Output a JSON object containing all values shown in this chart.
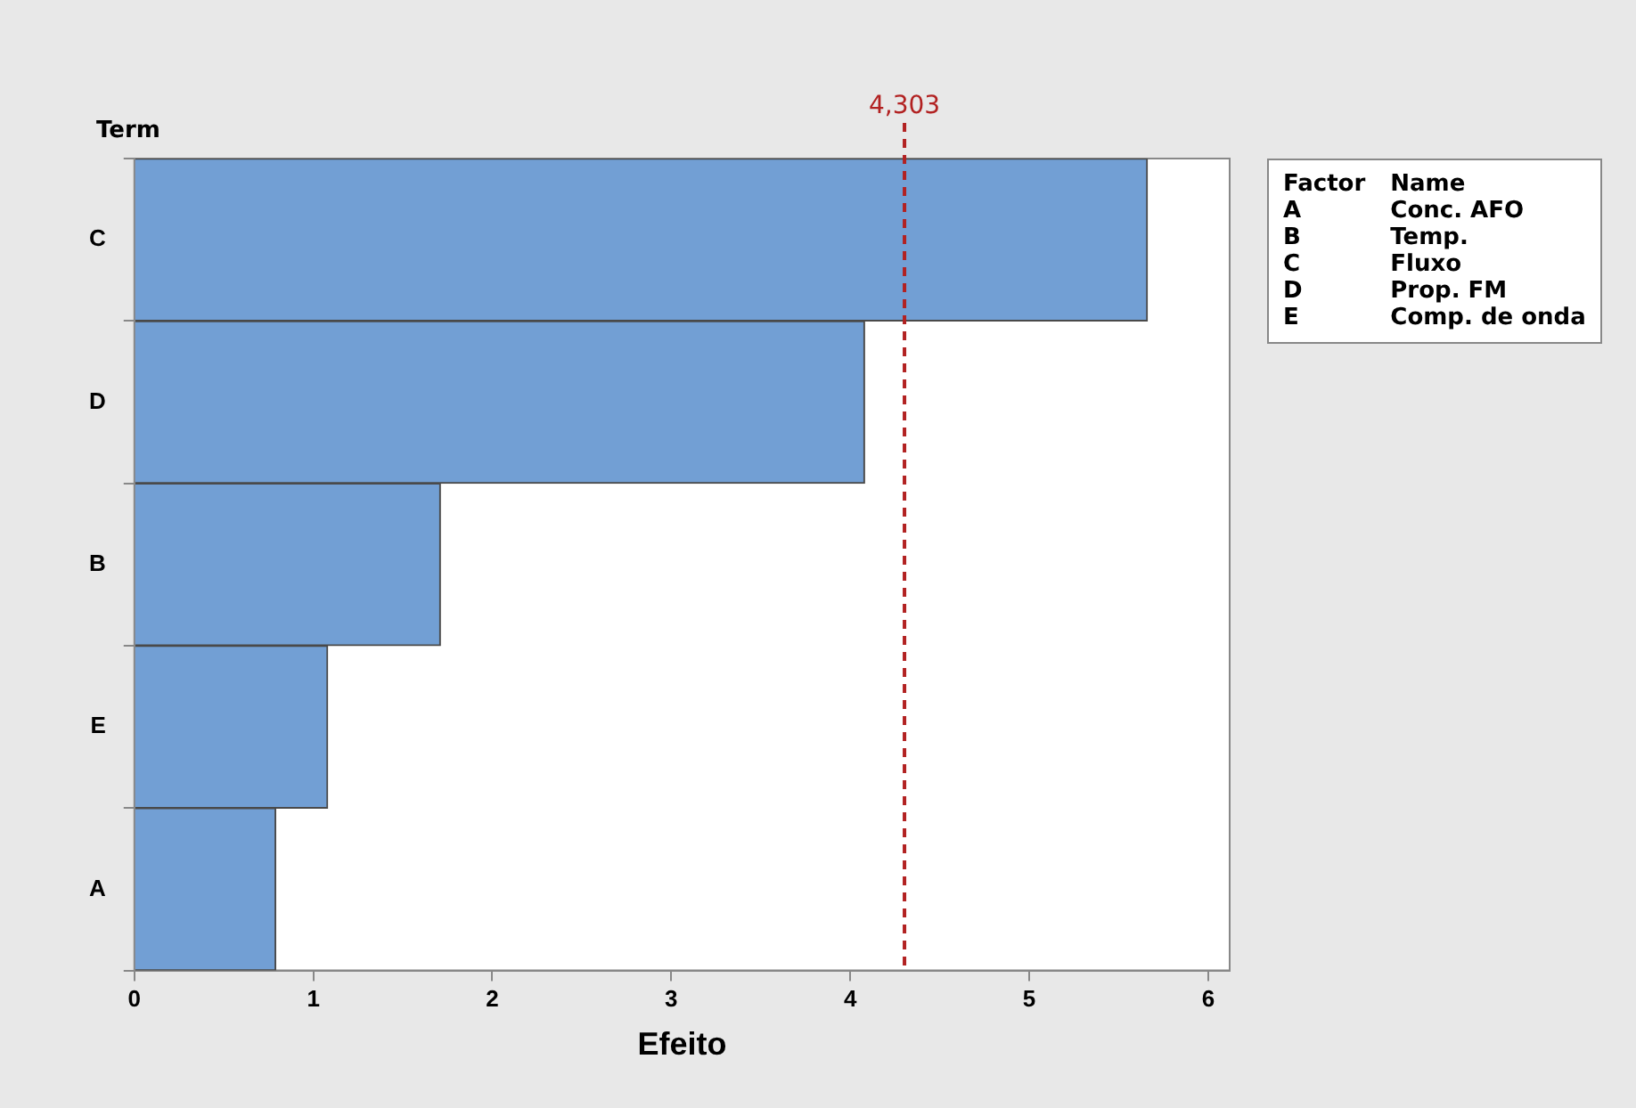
{
  "chart_data": {
    "type": "bar",
    "orientation": "horizontal",
    "xlabel": "Efeito",
    "ylabel": "Term",
    "categories": [
      "C",
      "D",
      "B",
      "E",
      "A"
    ],
    "values": [
      5.66,
      4.08,
      1.71,
      1.08,
      0.79
    ],
    "color": "#729fd4",
    "xlim": [
      0,
      6.12
    ],
    "xticks": [
      0,
      1,
      2,
      3,
      4,
      5,
      6
    ],
    "grid": false,
    "legend": false,
    "ref_lines": [
      {
        "axis": "x",
        "value": 4.303,
        "label": "4,303",
        "color": "#b22222",
        "line_style": "dashed"
      }
    ],
    "annotations": [
      "Factor",
      "Name",
      "A",
      "Conc. AFO",
      "B",
      "Temp.",
      "C",
      "Fluxo",
      "D",
      "Prop. FM",
      "E",
      "Comp. de onda"
    ]
  }
}
